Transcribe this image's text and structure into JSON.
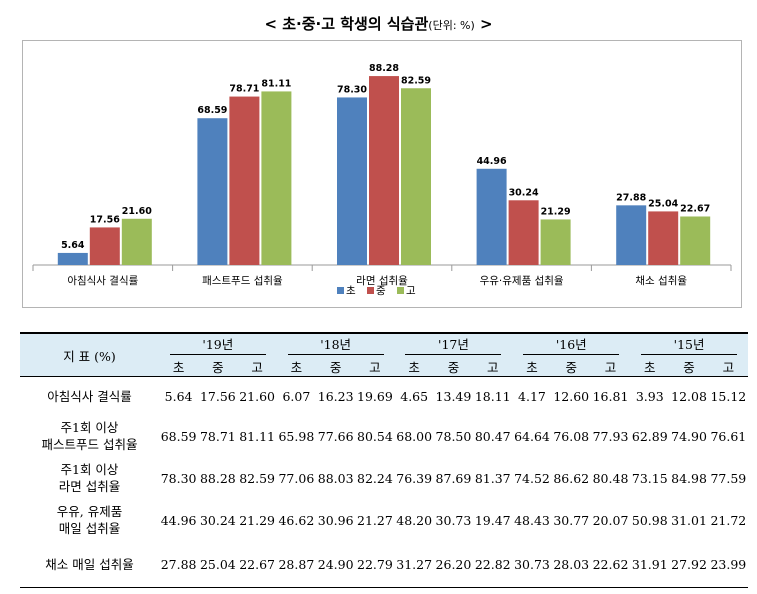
{
  "title": {
    "main": "< 초·중·고 학생의 식습관",
    "unit": "(단위: %)",
    "close": " >"
  },
  "colors": {
    "초": "#4f81bd",
    "중": "#c0504d",
    "고": "#9bbb59",
    "frame": "#b4b4b4",
    "header_bg": "#dcecf5"
  },
  "chart_data": {
    "type": "bar",
    "categories": [
      "아침식사 결식률",
      "패스트푸드 섭취율",
      "라면 섭취율",
      "우유·유제품 섭취율",
      "채소 섭취율"
    ],
    "series": [
      {
        "name": "초",
        "values": [
          5.64,
          68.59,
          78.3,
          44.96,
          27.88
        ]
      },
      {
        "name": "중",
        "values": [
          17.56,
          78.71,
          88.28,
          30.24,
          25.04
        ]
      },
      {
        "name": "고",
        "values": [
          21.6,
          81.11,
          82.59,
          21.29,
          22.67
        ]
      }
    ],
    "ylim": [
      0,
      100
    ],
    "grid": false,
    "legend": "bottom-center",
    "data_labels": true
  },
  "table": {
    "header_label": "지  표 (%)",
    "years": [
      "'19년",
      "'18년",
      "'17년",
      "'16년",
      "'15년"
    ],
    "levels": [
      "초",
      "중",
      "고"
    ],
    "rows": [
      {
        "label": [
          "아침식사 결식률"
        ],
        "values": [
          "5.64",
          "17.56",
          "21.60",
          "6.07",
          "16.23",
          "19.69",
          "4.65",
          "13.49",
          "18.11",
          "4.17",
          "12.60",
          "16.81",
          "3.93",
          "12.08",
          "15.12"
        ]
      },
      {
        "label": [
          "주1회 이상",
          "패스트푸드 섭취율"
        ],
        "values": [
          "68.59",
          "78.71",
          "81.11",
          "65.98",
          "77.66",
          "80.54",
          "68.00",
          "78.50",
          "80.47",
          "64.64",
          "76.08",
          "77.93",
          "62.89",
          "74.90",
          "76.61"
        ]
      },
      {
        "label": [
          "주1회 이상",
          "라면 섭취율"
        ],
        "values": [
          "78.30",
          "88.28",
          "82.59",
          "77.06",
          "88.03",
          "82.24",
          "76.39",
          "87.69",
          "81.37",
          "74.52",
          "86.62",
          "80.48",
          "73.15",
          "84.98",
          "77.59"
        ]
      },
      {
        "label": [
          "우유, 유제품",
          "매일 섭취율"
        ],
        "values": [
          "44.96",
          "30.24",
          "21.29",
          "46.62",
          "30.96",
          "21.27",
          "48.20",
          "30.73",
          "19.47",
          "48.43",
          "30.77",
          "20.07",
          "50.98",
          "31.01",
          "21.72"
        ]
      },
      {
        "label": [
          "채소 매일 섭취율"
        ],
        "values": [
          "27.88",
          "25.04",
          "22.67",
          "28.87",
          "24.90",
          "22.79",
          "31.27",
          "26.20",
          "22.82",
          "30.73",
          "28.03",
          "22.62",
          "31.91",
          "27.92",
          "23.99"
        ]
      }
    ]
  }
}
